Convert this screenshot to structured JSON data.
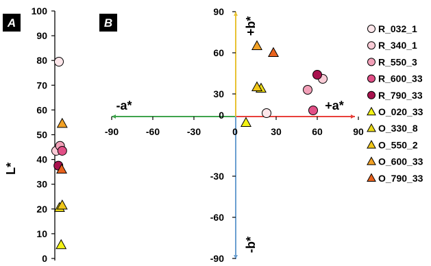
{
  "panel_labels": {
    "a": "A",
    "b": "B"
  },
  "axis_texts": {
    "l_axis": "L*",
    "pos_a": "+a*",
    "neg_a": "-a*",
    "pos_b": "+b*",
    "neg_b": "-b*"
  },
  "colors": {
    "pos_a_axis": "#e8403a",
    "neg_a_axis": "#3fa34d",
    "pos_b_axis": "#e8c233",
    "neg_b_axis": "#6a9fd0",
    "panel_label_bg": "#000000"
  },
  "chart_data": [
    {
      "type": "scatter",
      "panel": "A",
      "ylabel": "L*",
      "ylim": [
        0,
        100
      ],
      "yticks": [
        "0",
        "10",
        "20",
        "30",
        "40",
        "50",
        "60",
        "70",
        "80",
        "90",
        "100"
      ],
      "grid": false,
      "series": [
        {
          "name": "R_032_1",
          "marker": "circle",
          "color": "#fde6ea",
          "points": [
            {
              "x": 0,
              "y": 79.5
            }
          ]
        },
        {
          "name": "R_340_1",
          "marker": "circle",
          "color": "#f9cbd6",
          "points": [
            {
              "x": -0.5,
              "y": 43.5
            }
          ]
        },
        {
          "name": "R_550_3",
          "marker": "circle",
          "color": "#f2a0b8",
          "points": [
            {
              "x": 0.2,
              "y": 45.5
            }
          ]
        },
        {
          "name": "R_600_33",
          "marker": "circle",
          "color": "#e14f86",
          "points": [
            {
              "x": 0.6,
              "y": 43.5
            }
          ]
        },
        {
          "name": "R_790_33",
          "marker": "circle",
          "color": "#a8124e",
          "points": [
            {
              "x": -0.1,
              "y": 37.5
            }
          ]
        },
        {
          "name": "O_020_33",
          "marker": "triangle",
          "color": "#f3f215",
          "points": [
            {
              "x": 0.4,
              "y": 5.5
            }
          ]
        },
        {
          "name": "O_330_8",
          "marker": "triangle",
          "color": "#ead918",
          "points": [
            {
              "x": 0.1,
              "y": 20.5
            }
          ]
        },
        {
          "name": "O_550_2",
          "marker": "triangle",
          "color": "#f0c619",
          "points": [
            {
              "x": 0.6,
              "y": 21.5
            }
          ]
        },
        {
          "name": "O_600_33",
          "marker": "triangle",
          "color": "#f2a125",
          "points": [
            {
              "x": 0.6,
              "y": 54.5
            }
          ]
        },
        {
          "name": "O_790_33",
          "marker": "triangle",
          "color": "#e8621d",
          "points": [
            {
              "x": 0.5,
              "y": 36
            }
          ]
        }
      ]
    },
    {
      "type": "scatter",
      "panel": "B",
      "xlim": [
        -90,
        90
      ],
      "ylim": [
        -90,
        90
      ],
      "xticks": [
        "-90",
        "-60",
        "-30",
        "0",
        "30",
        "60",
        "90"
      ],
      "yticks": [
        "90",
        "60",
        "30",
        "0",
        "-30",
        "-60",
        "-90"
      ],
      "grid": false,
      "legend_position": "right",
      "series": [
        {
          "name": "R_032_1",
          "marker": "circle",
          "color": "#fde6ea",
          "points": [
            {
              "x": 23,
              "y": 16
            }
          ]
        },
        {
          "name": "R_340_1",
          "marker": "circle",
          "color": "#f9cbd6",
          "points": [
            {
              "x": 64,
              "y": 41
            }
          ]
        },
        {
          "name": "R_550_3",
          "marker": "circle",
          "color": "#f2a0b8",
          "points": [
            {
              "x": 53,
              "y": 33
            }
          ]
        },
        {
          "name": "R_600_33",
          "marker": "circle",
          "color": "#e14f86",
          "points": [
            {
              "x": 57,
              "y": 18
            }
          ]
        },
        {
          "name": "R_790_33",
          "marker": "circle",
          "color": "#a8124e",
          "points": [
            {
              "x": 60,
              "y": 44
            }
          ]
        },
        {
          "name": "O_020_33",
          "marker": "triangle",
          "color": "#f3f215",
          "points": [
            {
              "x": 8,
              "y": 9
            }
          ]
        },
        {
          "name": "O_330_8",
          "marker": "triangle",
          "color": "#ead918",
          "points": [
            {
              "x": 19,
              "y": 34
            }
          ]
        },
        {
          "name": "O_550_2",
          "marker": "triangle",
          "color": "#f0c619",
          "points": [
            {
              "x": 16,
              "y": 35
            }
          ]
        },
        {
          "name": "O_600_33",
          "marker": "triangle",
          "color": "#f2a125",
          "points": [
            {
              "x": 16,
              "y": 65
            }
          ]
        },
        {
          "name": "O_790_33",
          "marker": "triangle",
          "color": "#e8621d",
          "points": [
            {
              "x": 28,
              "y": 60
            }
          ]
        }
      ]
    }
  ]
}
